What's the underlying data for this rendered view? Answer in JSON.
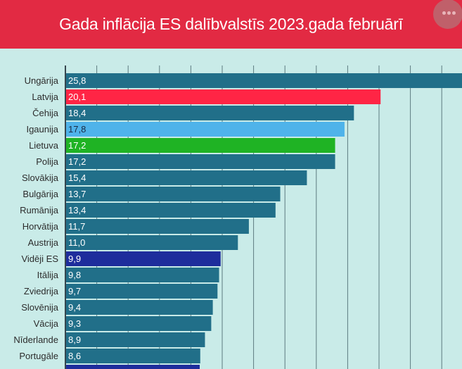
{
  "title": "Gada inflācija ES dalībvalstīs 2023.gada februārī",
  "menu": {
    "icon": "more-horizontal-icon"
  },
  "colors": {
    "header": "#e22a43",
    "background": "#c9ebe8",
    "default_bar": "#216f89",
    "gridline": "#5d7b80",
    "axis": "#37474f"
  },
  "chart_data": {
    "type": "bar",
    "orientation": "horizontal",
    "title": "Gada inflācija ES dalībvalstīs 2023.gada februārī",
    "categories": [
      "Ungārija",
      "Latvija",
      "Čehija",
      "Igaunija",
      "Lietuva",
      "Polija",
      "Slovākija",
      "Bulgārija",
      "Rumānija",
      "Horvātija",
      "Austrija",
      "Vidēji ES",
      "Itālija",
      "Zviedrija",
      "Slovēnija",
      "Vācija",
      "Nīderlande",
      "Portugāle"
    ],
    "value_labels": [
      "25,8",
      "20,1",
      "18,4",
      "17,8",
      "17,2",
      "17,2",
      "15,4",
      "13,7",
      "13,4",
      "11,7",
      "11,0",
      "9,9",
      "9,8",
      "9,7",
      "9,4",
      "9,3",
      "8,9",
      "8,6"
    ],
    "values": [
      25.8,
      20.1,
      18.4,
      17.8,
      17.2,
      17.2,
      15.4,
      13.7,
      13.4,
      11.7,
      11.0,
      9.9,
      9.8,
      9.7,
      9.4,
      9.3,
      8.9,
      8.6
    ],
    "highlight_colors": {
      "Latvija": "#ff2545",
      "Igaunija": "#4fb3ea",
      "Lietuva": "#1fb324",
      "Vidēji ES": "#1e2d9c"
    },
    "value_label_colors": {
      "Igaunija": "#1a2b44"
    },
    "xlim": [
      0,
      25
    ],
    "gridlines": true,
    "partial_next_bar_color": "#1e2d9c"
  }
}
